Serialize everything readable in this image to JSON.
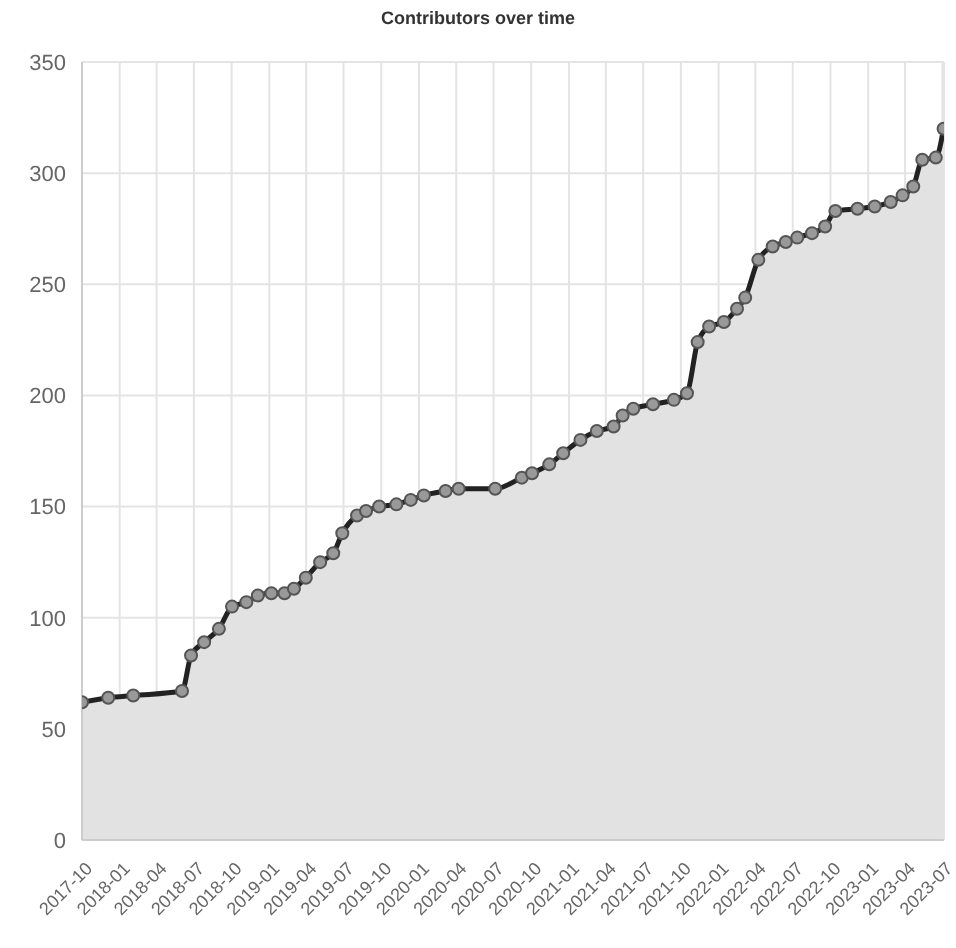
{
  "chart_data": {
    "type": "area",
    "title": "Contributors over time",
    "x": [
      "2017-10-01",
      "2017-12-04",
      "2018-02-03",
      "2018-06-02",
      "2018-06-24",
      "2018-07-26",
      "2018-08-31",
      "2018-10-02",
      "2018-11-06",
      "2018-12-04",
      "2019-01-06",
      "2019-02-07",
      "2019-03-02",
      "2019-03-31",
      "2019-05-05",
      "2019-06-06",
      "2019-06-28",
      "2019-08-03",
      "2019-08-25",
      "2019-09-26",
      "2019-11-07",
      "2019-12-12",
      "2020-01-13",
      "2020-03-06",
      "2020-04-07",
      "2020-07-05",
      "2020-09-08",
      "2020-10-03",
      "2020-11-14",
      "2020-12-18",
      "2021-01-29",
      "2021-03-10",
      "2021-04-20",
      "2021-05-12",
      "2021-06-07",
      "2021-07-25",
      "2021-09-14",
      "2021-10-16",
      "2021-11-11",
      "2021-12-09",
      "2022-01-14",
      "2022-02-15",
      "2022-03-07",
      "2022-04-08",
      "2022-05-13",
      "2022-06-14",
      "2022-07-12",
      "2022-08-17",
      "2022-09-18",
      "2022-10-13",
      "2022-12-06",
      "2023-01-17",
      "2023-02-25",
      "2023-03-26",
      "2023-04-21",
      "2023-05-13",
      "2023-06-15",
      "2023-07-04"
    ],
    "series": [
      {
        "color": "#222222",
        "values": [
          62,
          64,
          65,
          67,
          83,
          89,
          95,
          105,
          107,
          110,
          111,
          111,
          113,
          118,
          125,
          129,
          138,
          146,
          148,
          150,
          151,
          153,
          155,
          157,
          158,
          158,
          163,
          165,
          169,
          174,
          180,
          184,
          186,
          191,
          194,
          196,
          198,
          201,
          224,
          231,
          233,
          239,
          244,
          261,
          267,
          269,
          271,
          273,
          276,
          283,
          284,
          285,
          287,
          290,
          294,
          306,
          307,
          320
        ]
      }
    ],
    "xlim": [
      "2017-10-01",
      "2023-07-05"
    ],
    "xticks": [
      "2017-10",
      "2018-01",
      "2018-04",
      "2018-07",
      "2018-10",
      "2019-01",
      "2019-04",
      "2019-07",
      "2019-10",
      "2020-01",
      "2020-04",
      "2020-07",
      "2020-10",
      "2021-01",
      "2021-04",
      "2021-07",
      "2021-10",
      "2022-01",
      "2022-04",
      "2022-07",
      "2022-10",
      "2023-01",
      "2023-04",
      "2023-07"
    ],
    "ylim": [
      0,
      350
    ],
    "yticks": [
      0,
      50,
      100,
      150,
      200,
      250,
      300,
      350
    ],
    "grid": true,
    "marker": "circle",
    "line_style": "solid"
  }
}
